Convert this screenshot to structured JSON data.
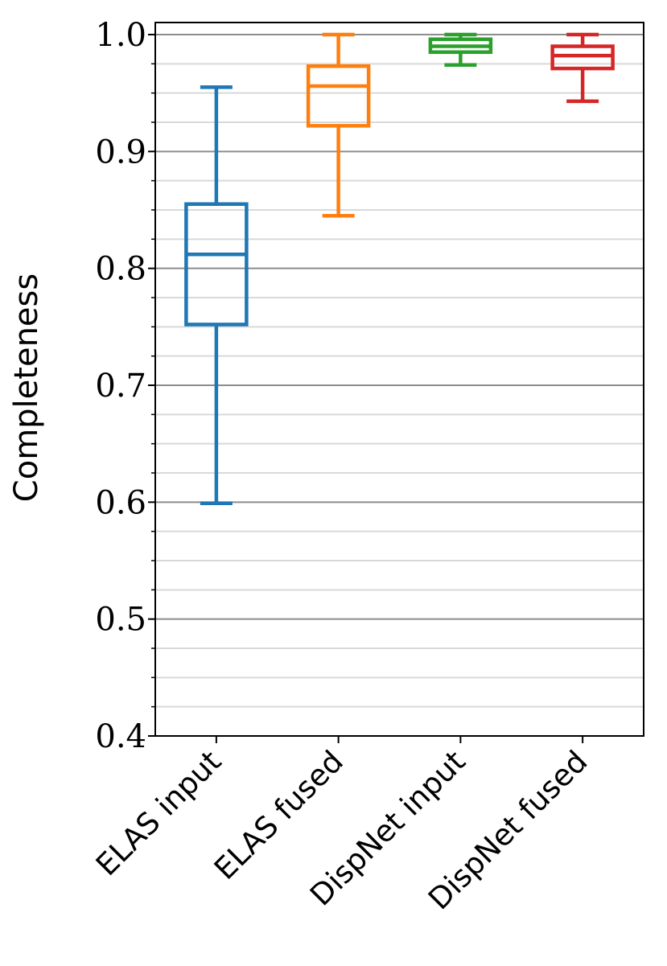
{
  "chart_data": {
    "type": "box",
    "title": "",
    "xlabel": "",
    "ylabel": "Completeness",
    "ylim": [
      0.4,
      1.0
    ],
    "yticks": [
      "0.4",
      "0.5",
      "0.6",
      "0.7",
      "0.8",
      "0.9",
      "1.0"
    ],
    "grid": {
      "major": true,
      "minor": true,
      "axis": "y"
    },
    "categories": [
      "ELAS input",
      "ELAS fused",
      "DispNet input",
      "DispNet fused"
    ],
    "boxes": [
      {
        "name": "ELAS input",
        "color": "#1f77b4",
        "whislo": 0.599,
        "q1": 0.752,
        "med": 0.812,
        "q3": 0.855,
        "whishi": 0.955
      },
      {
        "name": "ELAS fused",
        "color": "#ff7f0e",
        "whislo": 0.845,
        "q1": 0.922,
        "med": 0.956,
        "q3": 0.973,
        "whishi": 1.0
      },
      {
        "name": "DispNet input",
        "color": "#2ca02c",
        "whislo": 0.974,
        "q1": 0.985,
        "med": 0.99,
        "q3": 0.996,
        "whishi": 1.0
      },
      {
        "name": "DispNet fused",
        "color": "#d62728",
        "whislo": 0.943,
        "q1": 0.971,
        "med": 0.982,
        "q3": 0.99,
        "whishi": 1.0
      }
    ]
  }
}
